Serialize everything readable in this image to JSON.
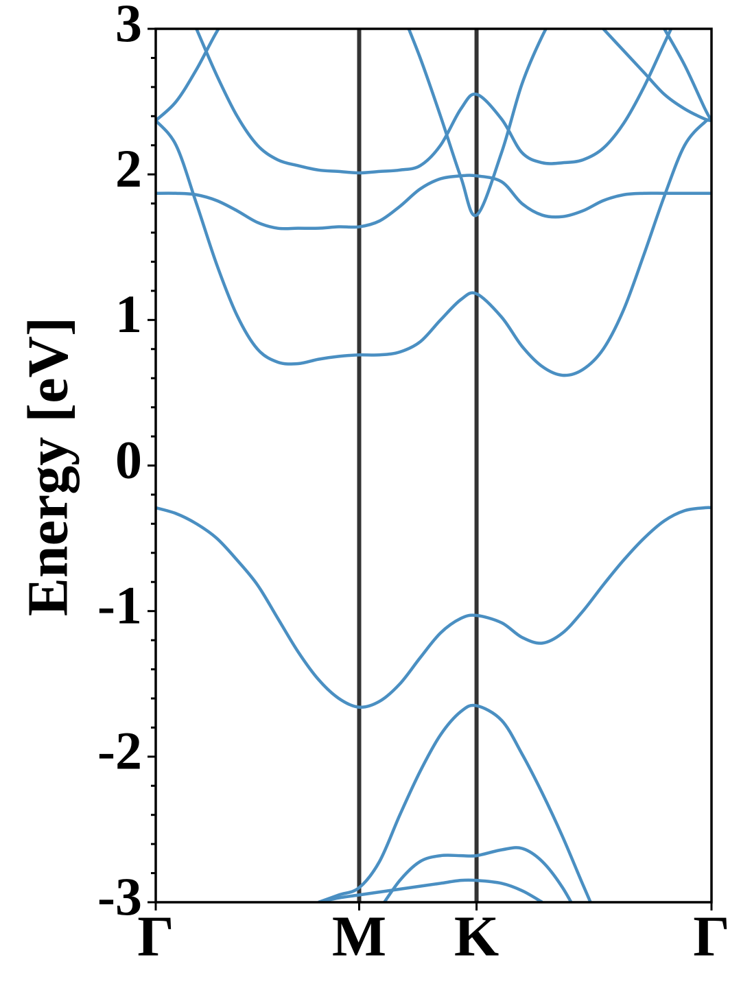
{
  "chart_data": {
    "type": "line",
    "ylabel": "Energy [eV]",
    "x": [
      0,
      0.1,
      0.2,
      0.3,
      0.4,
      0.5,
      0.6,
      0.7,
      0.8,
      0.9,
      1.0,
      1.1,
      1.2,
      1.3,
      1.4,
      1.5,
      1.577,
      1.7,
      1.8,
      1.9,
      2.0,
      2.1,
      2.2,
      2.3,
      2.4,
      2.5,
      2.6,
      2.7,
      2.732
    ],
    "xlim": [
      0,
      2.732
    ],
    "xticks": [
      {
        "value": 0,
        "label": "Γ"
      },
      {
        "value": 1.0,
        "label": "M"
      },
      {
        "value": 1.577,
        "label": "K"
      },
      {
        "value": 2.732,
        "label": "Γ"
      }
    ],
    "ylim": [
      -3,
      3
    ],
    "yticks": [
      -3,
      -2,
      -1,
      0,
      1,
      2,
      3
    ],
    "yminorticks": [
      -2.8,
      -2.6,
      -2.4,
      -2.2,
      -1.8,
      -1.6,
      -1.4,
      -1.2,
      -0.8,
      -0.6,
      -0.4,
      -0.2,
      0.2,
      0.4,
      0.6,
      0.8,
      1.2,
      1.4,
      1.6,
      1.8,
      2.2,
      2.4,
      2.6,
      2.8
    ],
    "color": "#4a8fc2",
    "vline_color": "#333333",
    "series": [
      {
        "values": [
          -0.29,
          -0.33,
          -0.4,
          -0.5,
          -0.65,
          -0.82,
          -1.05,
          -1.28,
          -1.47,
          -1.6,
          -1.66,
          -1.62,
          -1.5,
          -1.32,
          -1.15,
          -1.05,
          -1.03,
          -1.08,
          -1.18,
          -1.22,
          -1.15,
          -1.0,
          -0.82,
          -0.65,
          -0.5,
          -0.38,
          -0.31,
          -0.29,
          -0.29
        ]
      },
      {
        "values": [
          2.37,
          2.2,
          1.8,
          1.38,
          1.03,
          0.8,
          0.71,
          0.7,
          0.73,
          0.75,
          0.76,
          0.76,
          0.78,
          0.85,
          1.0,
          1.14,
          1.18,
          1.02,
          0.82,
          0.68,
          0.62,
          0.66,
          0.8,
          1.07,
          1.45,
          1.85,
          2.2,
          2.36,
          2.37
        ]
      },
      {
        "values": [
          1.87,
          1.87,
          1.86,
          1.82,
          1.75,
          1.67,
          1.63,
          1.63,
          1.63,
          1.64,
          1.64,
          1.68,
          1.78,
          1.9,
          1.97,
          1.99,
          1.99,
          1.95,
          1.8,
          1.72,
          1.71,
          1.75,
          1.82,
          1.86,
          1.87,
          1.87,
          1.87,
          1.87,
          1.87
        ]
      },
      {
        "values": [
          2.37,
          2.5,
          2.72,
          2.98,
          3.2,
          null,
          null,
          null,
          null,
          null,
          null,
          null,
          null,
          null,
          null,
          null,
          null,
          null,
          null,
          null,
          null,
          null,
          null,
          null,
          null,
          null,
          null,
          null,
          null
        ]
      },
      {
        "values": [
          null,
          null,
          null,
          null,
          null,
          null,
          null,
          null,
          null,
          null,
          null,
          null,
          3.15,
          2.8,
          2.4,
          1.98,
          1.72,
          2.15,
          2.62,
          2.95,
          3.2,
          null,
          null,
          null,
          null,
          null,
          null,
          null,
          null
        ]
      },
      {
        "values": [
          null,
          null,
          3.0,
          2.68,
          2.4,
          2.2,
          2.1,
          2.06,
          2.03,
          2.02,
          2.01,
          2.02,
          2.03,
          2.06,
          2.2,
          2.45,
          2.55,
          2.38,
          2.15,
          2.08,
          2.08,
          2.1,
          2.18,
          2.35,
          2.6,
          2.9,
          3.2,
          null,
          null
        ]
      },
      {
        "values": [
          null,
          null,
          null,
          null,
          null,
          null,
          null,
          null,
          null,
          null,
          null,
          null,
          null,
          null,
          null,
          null,
          null,
          null,
          null,
          null,
          null,
          null,
          3.0,
          2.85,
          2.7,
          2.55,
          2.45,
          2.38,
          2.37
        ]
      },
      {
        "values": [
          null,
          null,
          null,
          null,
          null,
          null,
          null,
          null,
          null,
          null,
          null,
          null,
          null,
          null,
          null,
          null,
          null,
          null,
          null,
          null,
          null,
          null,
          null,
          null,
          null,
          3.0,
          2.75,
          2.45,
          2.37
        ]
      },
      {
        "values": [
          null,
          null,
          null,
          null,
          null,
          null,
          null,
          null,
          -3.0,
          -2.95,
          -2.9,
          -2.72,
          -2.4,
          -2.1,
          -1.85,
          -1.69,
          -1.65,
          -1.75,
          -1.98,
          -2.25,
          -2.55,
          -2.88,
          -3.2,
          null,
          null,
          null,
          null,
          null,
          null
        ]
      },
      {
        "values": [
          null,
          null,
          null,
          null,
          null,
          null,
          null,
          null,
          -3.0,
          -2.97,
          -2.95,
          -2.93,
          -2.91,
          -2.89,
          -2.87,
          -2.85,
          -2.85,
          -2.87,
          -2.92,
          -3.0,
          null,
          null,
          null,
          null,
          null,
          null,
          null,
          null,
          null
        ]
      },
      {
        "values": [
          null,
          null,
          null,
          null,
          null,
          null,
          null,
          null,
          null,
          null,
          null,
          -3.05,
          -2.85,
          -2.72,
          -2.68,
          -2.68,
          -2.68,
          -2.64,
          -2.63,
          -2.72,
          -2.9,
          -3.15,
          null,
          null,
          null,
          null,
          null,
          null,
          null
        ]
      }
    ]
  }
}
